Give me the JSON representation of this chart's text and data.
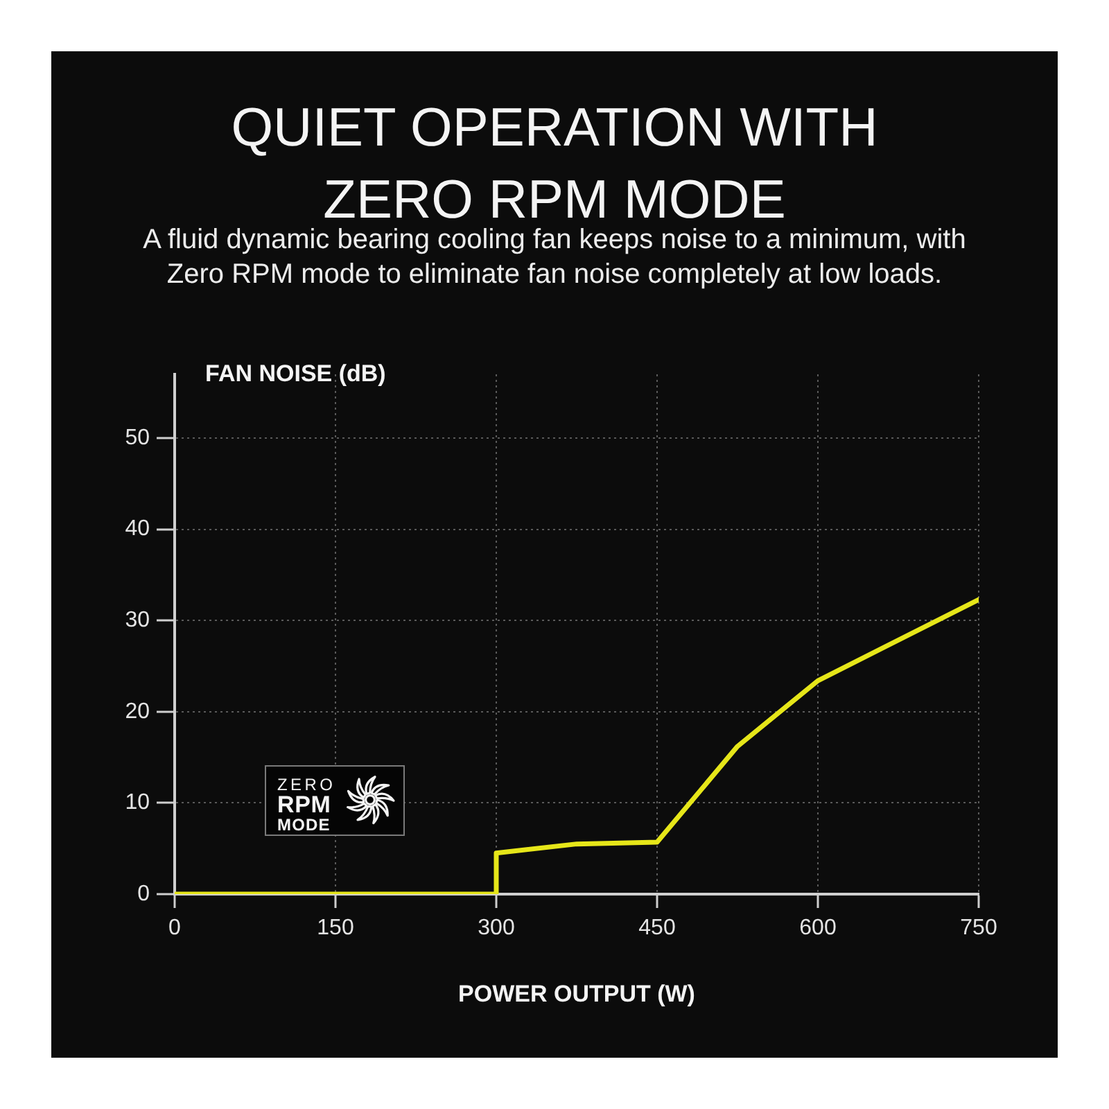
{
  "chart_data": {
    "type": "line",
    "title": "QUIET OPERATION WITH ZERO RPM MODE",
    "subtitle": "A fluid dynamic bearing cooling fan keeps noise to a minimum, with Zero RPM mode to eliminate fan noise completely at low loads.",
    "xlabel": "POWER OUTPUT (W)",
    "ylabel": "FAN NOISE (dB)",
    "annotations": [
      "ZERO RPM MODE"
    ],
    "x": [
      0,
      300,
      300,
      375,
      450,
      525,
      600,
      750
    ],
    "series": [
      {
        "color": "#e6e619",
        "values": [
          0,
          0,
          4.5,
          5.5,
          5.7,
          16.2,
          23.4,
          32.3
        ]
      }
    ],
    "xlim": [
      0,
      750
    ],
    "xticks": [
      0,
      150,
      300,
      450,
      600,
      750
    ],
    "ylim": [
      0,
      57
    ],
    "yticks": [
      0,
      10,
      20,
      30,
      40,
      50
    ],
    "grid": true,
    "marker": "none",
    "line_style": "solid"
  }
}
